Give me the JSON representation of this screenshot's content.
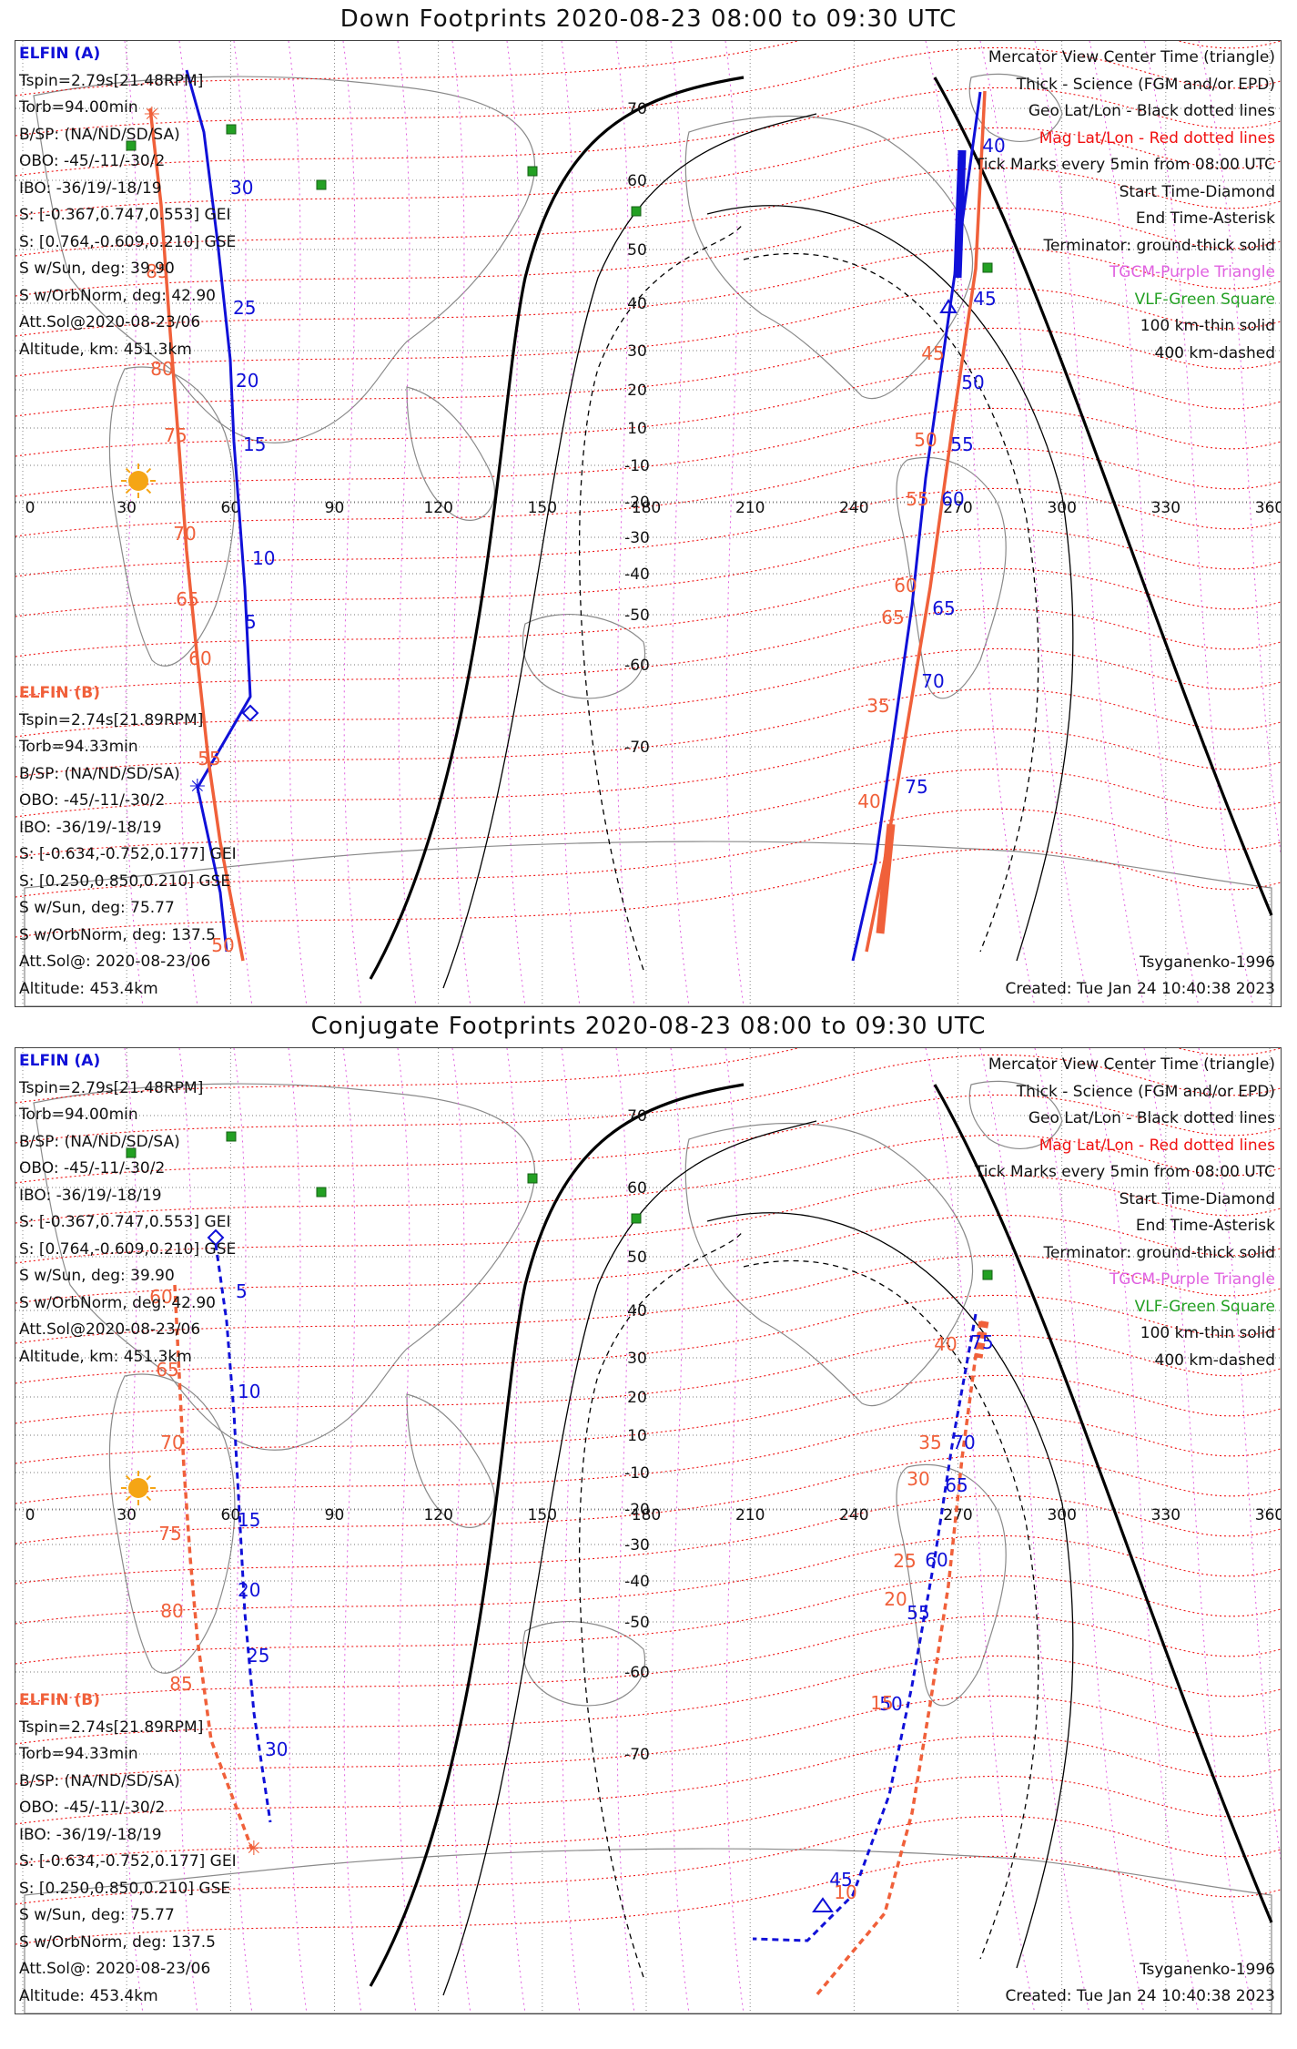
{
  "panels": [
    {
      "title": "Down Footprints 2020-08-23 08:00 to 09:30 UTC",
      "sat_a": {
        "name": "ELFIN (A)",
        "lines": [
          "Tspin=2.79s[21.48RPM]",
          "Torb=94.00min",
          "B/SP: (NA/ND/SD/SA)",
          "OBO: -45/-11/-30/2",
          "IBO: -36/19/-18/19",
          "S: [-0.367,0.747,0.553] GEI",
          "S: [0.764,-0.609,0.210] GSE",
          "S w/Sun, deg: 39.90",
          "S w/OrbNorm, deg: 42.90",
          "Att.Sol@2020-08-23/06",
          "Altitude, km: 451.3km"
        ]
      },
      "sat_b": {
        "name": "ELFIN (B)",
        "lines": [
          "Tspin=2.74s[21.89RPM]",
          "Torb=94.33min",
          "B/SP: (NA/ND/SD/SA)",
          "OBO: -45/-11/-30/2",
          "IBO: -36/19/-18/19",
          "S: [-0.634,-0.752,0.177] GEI",
          "S: [0.250,0.850,0.210] GSE",
          "S w/Sun, deg: 75.77",
          "S w/OrbNorm, deg: 137.5",
          "Att.Sol@: 2020-08-23/06",
          "Altitude: 453.4km"
        ]
      },
      "legend": {
        "mercator": "Mercator View Center Time (triangle)",
        "thick": "Thick - Science (FGM and/or EPD)",
        "geo": "Geo Lat/Lon - Black dotted lines",
        "mag": "Mag Lat/Lon - Red dotted lines",
        "ticks": "Tick Marks every 5min from 08:00 UTC",
        "start": "Start Time-Diamond",
        "end": "End Time-Asterisk",
        "terminator": "Terminator: ground-thick solid",
        "tgcm": "TGCM-Purple Triangle",
        "vlf": "VLF-Green Square",
        "km100": "100 km-thin solid",
        "km400": "400 km-dashed"
      },
      "model": "Tsyganenko-1996",
      "created": "Created: Tue Jan 24 10:40:38 2023",
      "tracks": {
        "a_left_ticks": [
          "30",
          "25",
          "20",
          "15",
          "10",
          "5"
        ],
        "b_left_ticks": [
          "85",
          "80",
          "75",
          "70",
          "65",
          "60",
          "55",
          "50"
        ],
        "a_right_ticks": [
          "40",
          "45",
          "50",
          "55",
          "60",
          "65",
          "70",
          "75"
        ],
        "b_right_ticks": [
          "45",
          "50",
          "55",
          "60",
          "65",
          "35",
          "40"
        ]
      }
    },
    {
      "title": "Conjugate Footprints 2020-08-23 08:00 to 09:30 UTC",
      "sat_a": {
        "name": "ELFIN (A)",
        "lines": [
          "Tspin=2.79s[21.48RPM]",
          "Torb=94.00min",
          "B/SP: (NA/ND/SD/SA)",
          "OBO: -45/-11/-30/2",
          "IBO: -36/19/-18/19",
          "S: [-0.367,0.747,0.553] GEI",
          "S: [0.764,-0.609,0.210] GSE",
          "S w/Sun, deg: 39.90",
          "S w/OrbNorm, deg: 42.90",
          "Att.Sol@2020-08-23/06",
          "Altitude, km: 451.3km"
        ]
      },
      "sat_b": {
        "name": "ELFIN (B)",
        "lines": [
          "Tspin=2.74s[21.89RPM]",
          "Torb=94.33min",
          "B/SP: (NA/ND/SD/SA)",
          "OBO: -45/-11/-30/2",
          "IBO: -36/19/-18/19",
          "S: [-0.634,-0.752,0.177] GEI",
          "S: [0.250,0.850,0.210] GSE",
          "S w/Sun, deg: 75.77",
          "S w/OrbNorm, deg: 137.5",
          "Att.Sol@: 2020-08-23/06",
          "Altitude: 453.4km"
        ]
      },
      "legend": {
        "mercator": "Mercator View Center Time (triangle)",
        "thick": "Thick - Science (FGM and/or EPD)",
        "geo": "Geo Lat/Lon - Black dotted lines",
        "mag": "Mag Lat/Lon - Red dotted lines",
        "ticks": "Tick Marks every 5min from 08:00 UTC",
        "start": "Start Time-Diamond",
        "end": "End Time-Asterisk",
        "terminator": "Terminator: ground-thick solid",
        "tgcm": "TGCM-Purple Triangle",
        "vlf": "VLF-Green Square",
        "km100": "100 km-thin solid",
        "km400": "400 km-dashed"
      },
      "model": "Tsyganenko-1996",
      "created": "Created: Tue Jan 24 10:40:38 2023",
      "tracks": {
        "a_left_ticks": [
          "5",
          "10",
          "15",
          "20",
          "25",
          "30"
        ],
        "b_left_ticks": [
          "60",
          "65",
          "70",
          "75",
          "80",
          "85"
        ],
        "a_right_ticks": [
          "75",
          "70",
          "65",
          "60",
          "55",
          "50",
          "45"
        ],
        "b_right_ticks": [
          "40",
          "35",
          "30",
          "25",
          "20",
          "15",
          "10"
        ]
      }
    }
  ],
  "map": {
    "lon_labels": [
      "0",
      "30",
      "60",
      "90",
      "120",
      "150",
      "180",
      "210",
      "240",
      "270",
      "300",
      "330",
      "360"
    ],
    "lat_labels": [
      "70",
      "60",
      "50",
      "40",
      "30",
      "20",
      "10",
      "-10",
      "-20",
      "-30",
      "-40",
      "-50",
      "-60",
      "-70"
    ]
  },
  "colors": {
    "elfin_a": "#1010d8",
    "elfin_b": "#f0603a",
    "mag_grid": "#ee1010",
    "tgcm": "#e060e0",
    "vlf": "#23a023",
    "sun": "#f5a515"
  }
}
